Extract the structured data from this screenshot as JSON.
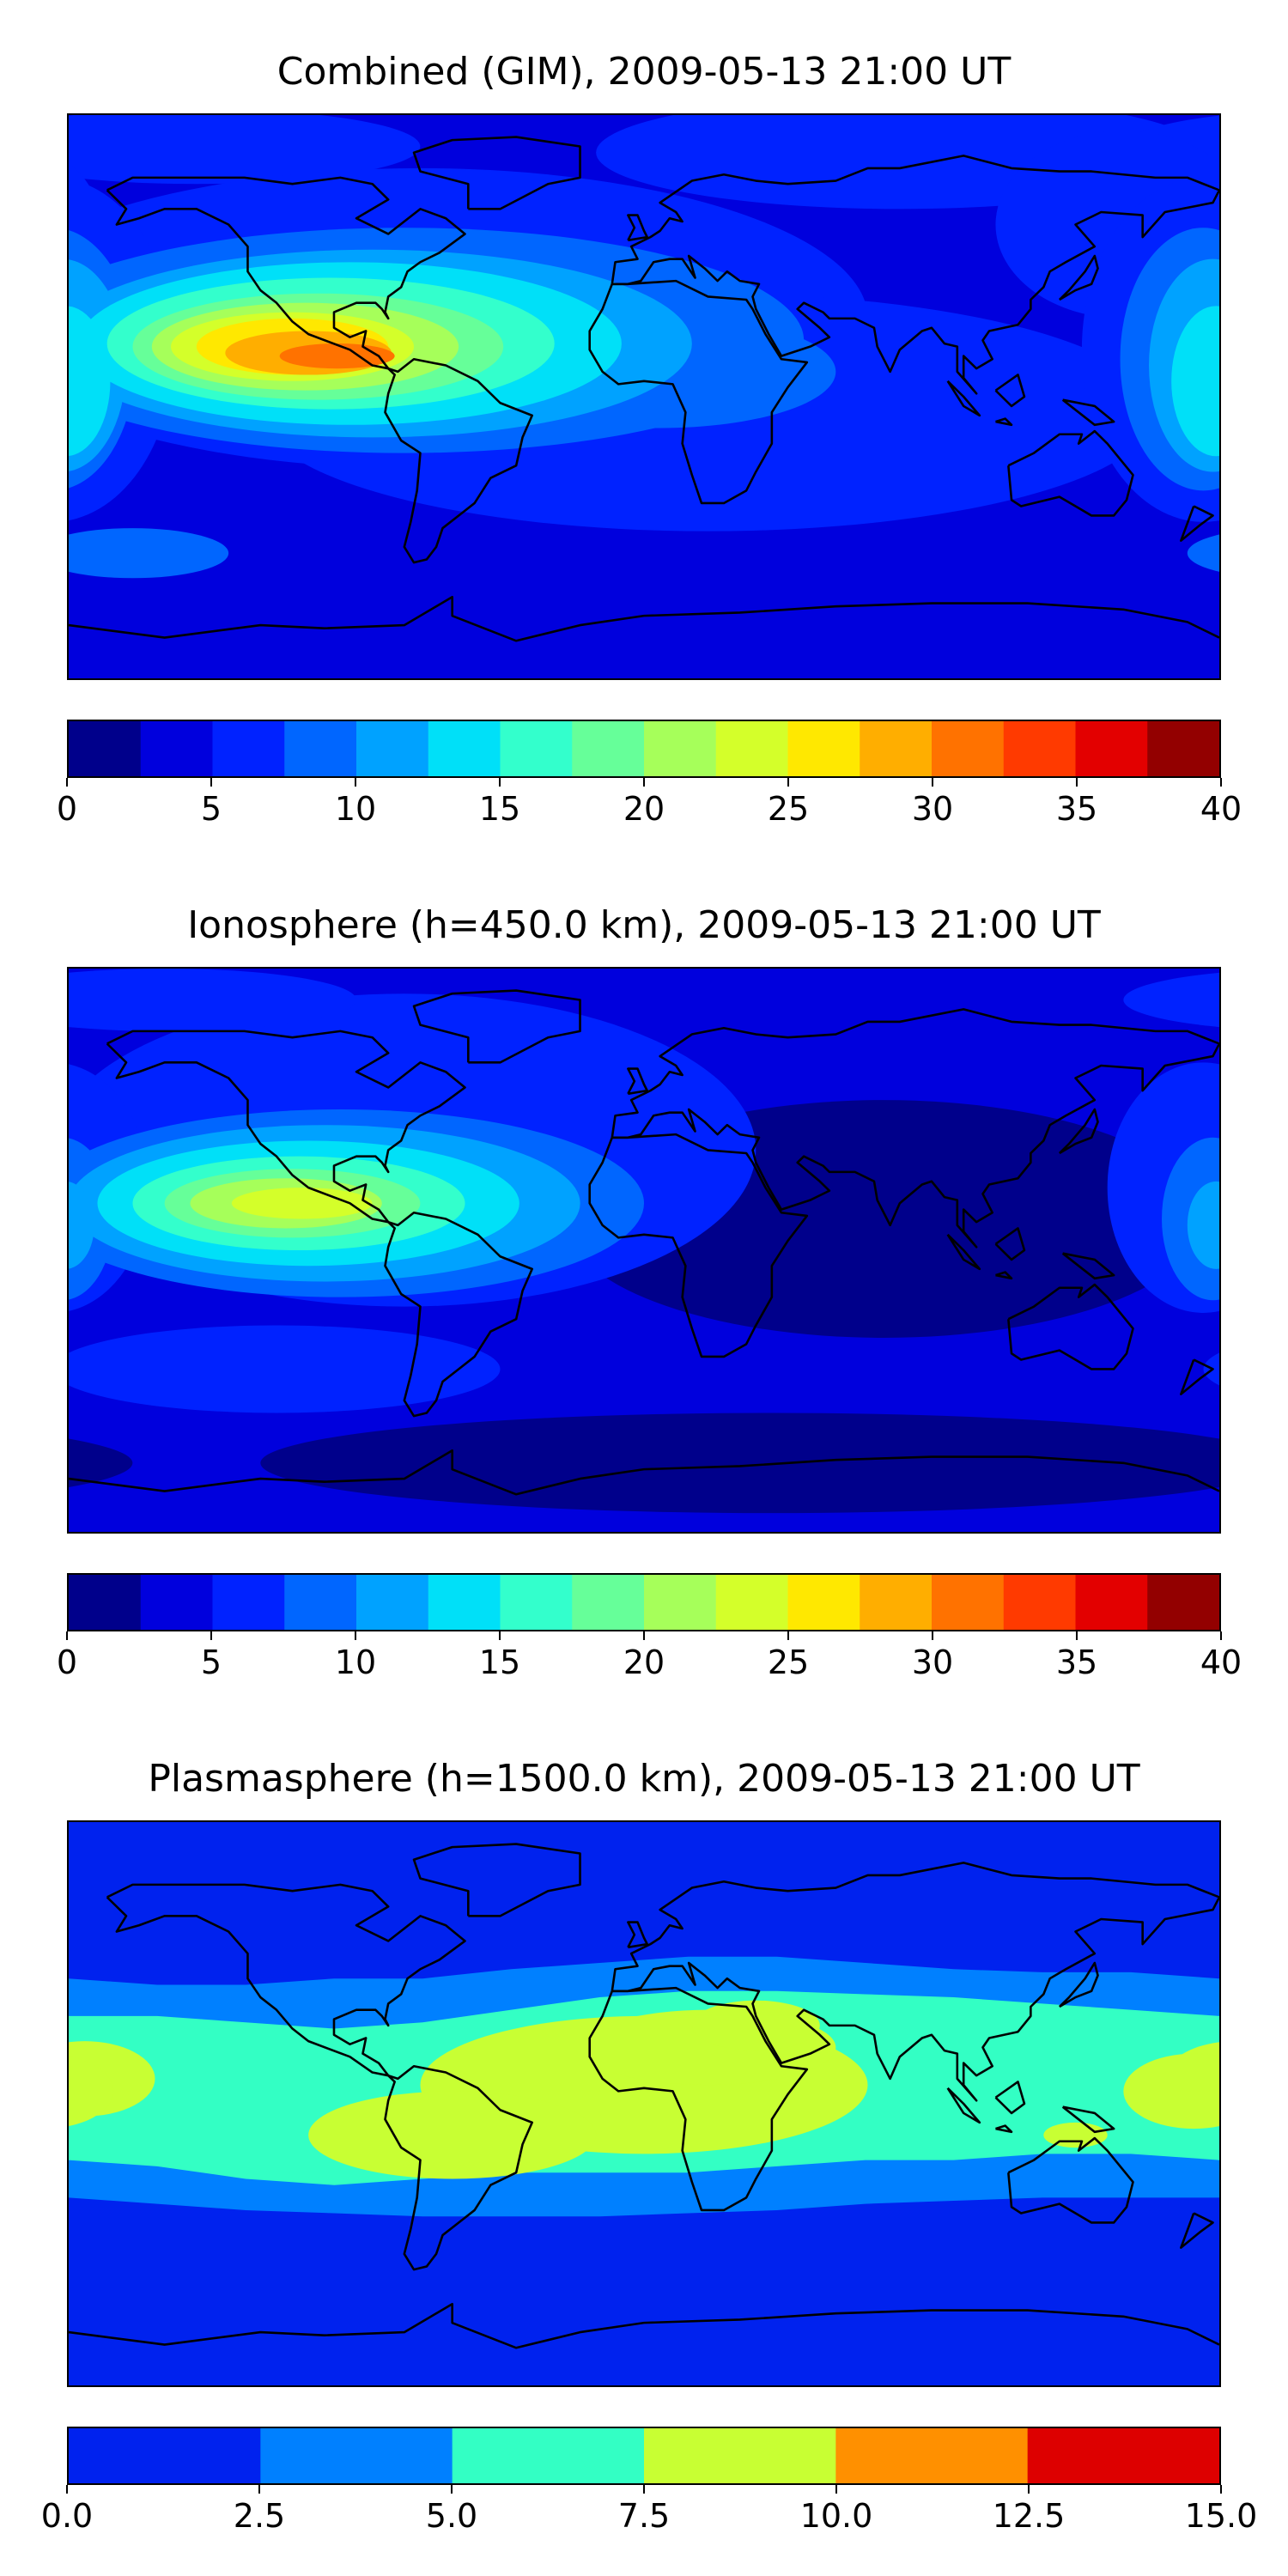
{
  "chart_data": [
    {
      "type": "heatmap",
      "title": "Combined (GIM), 2009-05-13 21:00 UT",
      "levels": [
        0,
        2.5,
        5,
        7.5,
        10,
        12.5,
        15,
        17.5,
        20,
        22.5,
        25,
        27.5,
        30,
        32.5,
        35,
        37.5,
        40
      ],
      "colors": [
        "#00008b",
        "#0000dd",
        "#0022ff",
        "#0066ff",
        "#00a2ff",
        "#00e0f8",
        "#33ffcc",
        "#66ff99",
        "#a6ff5a",
        "#d4ff2a",
        "#ffe800",
        "#ffae00",
        "#ff7200",
        "#ff3a00",
        "#e30000",
        "#930000"
      ],
      "colorbar_ticks": [
        "0",
        "5",
        "10",
        "15",
        "20",
        "25",
        "30",
        "35",
        "40"
      ],
      "colorbar_tick_values": [
        0,
        5,
        10,
        15,
        20,
        25,
        30,
        35,
        40
      ],
      "background_level": 1,
      "features": [
        {
          "level": 2,
          "lon": 80,
          "lat": 78,
          "rx": 95,
          "ry": 18
        },
        {
          "level": 2,
          "lon": -140,
          "lat": 80,
          "rx": 70,
          "ry": 12
        },
        {
          "level": 2,
          "lon": 150,
          "lat": 55,
          "rx": 40,
          "ry": 30
        },
        {
          "level": 2,
          "lon": -70,
          "lat": 25,
          "rx": 140,
          "ry": 48
        },
        {
          "level": 2,
          "lon": 20,
          "lat": -5,
          "rx": 140,
          "ry": 38
        },
        {
          "level": 2,
          "lon": 175,
          "lat": 15,
          "rx": 38,
          "ry": 55
        },
        {
          "level": 3,
          "lon": -75,
          "lat": 18,
          "rx": 125,
          "ry": 36
        },
        {
          "level": 3,
          "lon": 5,
          "lat": 8,
          "rx": 55,
          "ry": 18
        },
        {
          "level": 3,
          "lon": -160,
          "lat": -50,
          "rx": 30,
          "ry": 8
        },
        {
          "level": 3,
          "lon": 175,
          "lat": 12,
          "rx": 26,
          "ry": 42
        },
        {
          "level": 4,
          "lon": -85,
          "lat": 17,
          "rx": 100,
          "ry": 30
        },
        {
          "level": 4,
          "lon": 178,
          "lat": 10,
          "rx": 20,
          "ry": 34
        },
        {
          "level": 5,
          "lon": -92,
          "lat": 17,
          "rx": 85,
          "ry": 26
        },
        {
          "level": 5,
          "lon": 179,
          "lat": 5,
          "rx": 14,
          "ry": 24
        },
        {
          "level": 6,
          "lon": -98,
          "lat": 17,
          "rx": 70,
          "ry": 21
        },
        {
          "level": 7,
          "lon": -102,
          "lat": 16,
          "rx": 58,
          "ry": 17
        },
        {
          "level": 8,
          "lon": -106,
          "lat": 16,
          "rx": 48,
          "ry": 14
        },
        {
          "level": 9,
          "lon": -110,
          "lat": 16,
          "rx": 38,
          "ry": 11
        },
        {
          "level": 10,
          "lon": -110,
          "lat": 16,
          "rx": 30,
          "ry": 9
        },
        {
          "level": 11,
          "lon": -105,
          "lat": 14,
          "rx": 26,
          "ry": 7
        },
        {
          "level": 12,
          "lon": -96,
          "lat": 13,
          "rx": 18,
          "ry": 4
        }
      ]
    },
    {
      "type": "heatmap",
      "title": "Ionosphere  (h=450.0 km), 2009-05-13 21:00 UT",
      "levels": [
        0,
        2.5,
        5,
        7.5,
        10,
        12.5,
        15,
        17.5,
        20,
        22.5,
        25,
        27.5,
        30,
        32.5,
        35,
        37.5,
        40
      ],
      "colors": [
        "#00008b",
        "#0000dd",
        "#0022ff",
        "#0066ff",
        "#00a2ff",
        "#00e0f8",
        "#33ffcc",
        "#66ff99",
        "#a6ff5a",
        "#d4ff2a",
        "#ffe800",
        "#ffae00",
        "#ff7200",
        "#ff3a00",
        "#e30000",
        "#930000"
      ],
      "colorbar_ticks": [
        "0",
        "5",
        "10",
        "15",
        "20",
        "25",
        "30",
        "35",
        "40"
      ],
      "colorbar_tick_values": [
        0,
        5,
        10,
        15,
        20,
        25,
        30,
        35,
        40
      ],
      "background_level": 1,
      "features": [
        {
          "level": 0,
          "lon": 75,
          "lat": 10,
          "rx": 100,
          "ry": 38
        },
        {
          "level": 0,
          "lon": 40,
          "lat": -68,
          "rx": 160,
          "ry": 16
        },
        {
          "level": 2,
          "lon": -75,
          "lat": 32,
          "rx": 110,
          "ry": 50
        },
        {
          "level": 2,
          "lon": -150,
          "lat": 80,
          "rx": 60,
          "ry": 10
        },
        {
          "level": 2,
          "lon": 175,
          "lat": 20,
          "rx": 30,
          "ry": 40
        },
        {
          "level": 2,
          "lon": -115,
          "lat": -38,
          "rx": 70,
          "ry": 14
        },
        {
          "level": 3,
          "lon": -95,
          "lat": 15,
          "rx": 95,
          "ry": 30
        },
        {
          "level": 3,
          "lon": 178,
          "lat": 10,
          "rx": 16,
          "ry": 26
        },
        {
          "level": 4,
          "lon": -100,
          "lat": 15,
          "rx": 80,
          "ry": 25
        },
        {
          "level": 4,
          "lon": 179,
          "lat": 8,
          "rx": 9,
          "ry": 14
        },
        {
          "level": 5,
          "lon": -105,
          "lat": 15,
          "rx": 66,
          "ry": 20
        },
        {
          "level": 6,
          "lon": -108,
          "lat": 15,
          "rx": 52,
          "ry": 15
        },
        {
          "level": 7,
          "lon": -110,
          "lat": 15,
          "rx": 40,
          "ry": 11
        },
        {
          "level": 8,
          "lon": -112,
          "lat": 15,
          "rx": 30,
          "ry": 8
        },
        {
          "level": 9,
          "lon": -107,
          "lat": 15,
          "rx": 22,
          "ry": 5
        }
      ]
    },
    {
      "type": "heatmap",
      "title": "Plasmasphere (h=1500.0 km), 2009-05-13 21:00 UT",
      "levels": [
        0,
        2.5,
        5,
        7.5,
        10,
        12.5,
        15
      ],
      "colors": [
        "#0022ee",
        "#0080ff",
        "#33ffc4",
        "#c8ff33",
        "#ff9000",
        "#dd0000"
      ],
      "colorbar_ticks": [
        "0.0",
        "2.5",
        "5.0",
        "7.5",
        "10.0",
        "12.5",
        "15.0"
      ],
      "colorbar_tick_values": [
        0,
        2.5,
        5,
        7.5,
        10,
        12.5,
        15
      ],
      "background_level": 0,
      "bands": [
        {
          "level": 1,
          "lat_top": [
            40,
            38,
            38,
            40,
            40,
            43,
            45,
            47,
            47,
            45,
            43,
            42,
            42,
            40
          ],
          "lat_bottom": [
            -30,
            -32,
            -34,
            -35,
            -36,
            -36,
            -36,
            -35,
            -34,
            -32,
            -31,
            -30,
            -30,
            -30
          ]
        },
        {
          "level": 2,
          "lat_top": [
            28,
            28,
            26,
            24,
            26,
            30,
            34,
            36,
            36,
            35,
            34,
            32,
            30,
            28
          ],
          "lat_bottom": [
            -18,
            -20,
            -24,
            -26,
            -24,
            -22,
            -22,
            -22,
            -20,
            -18,
            -18,
            -16,
            -16,
            -18
          ]
        }
      ],
      "features": [
        {
          "level": 3,
          "lon": 0,
          "lat": 6,
          "rx": 70,
          "ry": 22
        },
        {
          "level": 3,
          "lon": -60,
          "lat": -10,
          "rx": 45,
          "ry": 14
        },
        {
          "level": 3,
          "lon": 20,
          "lat": 18,
          "rx": 40,
          "ry": 12
        },
        {
          "level": 3,
          "lon": 35,
          "lat": 25,
          "rx": 20,
          "ry": 8
        },
        {
          "level": 3,
          "lon": -175,
          "lat": 8,
          "rx": 22,
          "ry": 12
        },
        {
          "level": 3,
          "lon": 172,
          "lat": 4,
          "rx": 22,
          "ry": 12
        },
        {
          "level": 3,
          "lon": 135,
          "lat": -10,
          "rx": 10,
          "ry": 4
        }
      ]
    }
  ]
}
